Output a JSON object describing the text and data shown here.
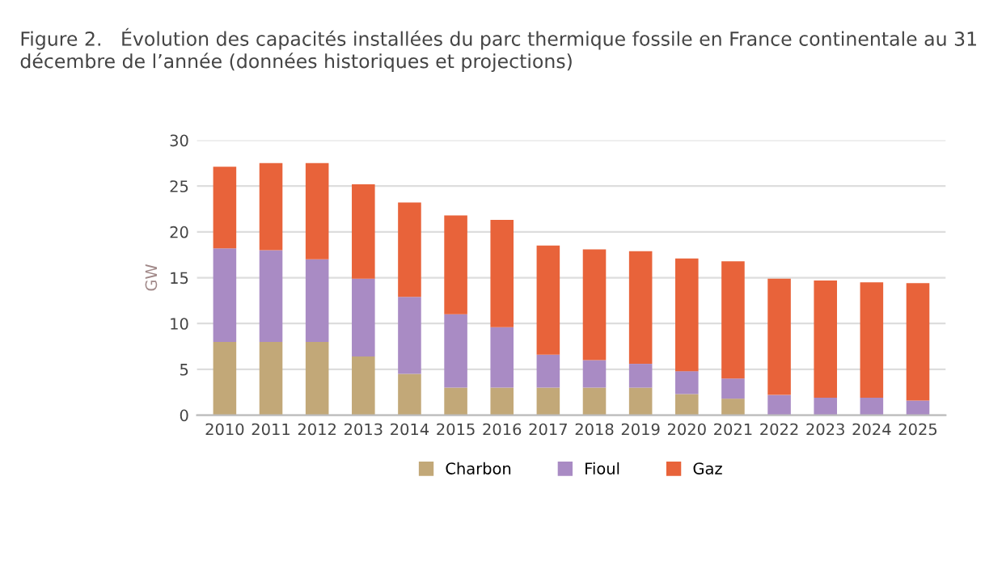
{
  "chart_data": {
    "type": "bar",
    "title": "Figure 2.   Évolution des capacités installées du parc thermique fossile en France continentale au 31 décembre de l’année (données historiques et projections)",
    "ylabel": "GW",
    "categories": [
      "2010",
      "2011",
      "2012",
      "2013",
      "2014",
      "2015",
      "2016",
      "2017",
      "2018",
      "2019",
      "2020",
      "2021",
      "2022",
      "2023",
      "2024",
      "2025"
    ],
    "stacked": true,
    "series": [
      {
        "name": "Charbon",
        "color": "#c2a878",
        "values": [
          8.0,
          8.0,
          8.0,
          6.4,
          4.5,
          3.0,
          3.0,
          3.0,
          3.0,
          3.0,
          2.3,
          1.8,
          0,
          0,
          0,
          0
        ]
      },
      {
        "name": "Fioul",
        "color": "#a98bc4",
        "values": [
          10.2,
          10.0,
          9.0,
          8.5,
          8.4,
          8.0,
          6.6,
          3.6,
          3.0,
          2.6,
          2.5,
          2.2,
          2.2,
          1.9,
          1.9,
          1.6
        ]
      },
      {
        "name": "Gaz",
        "color": "#e8633a",
        "values": [
          8.9,
          9.5,
          10.5,
          10.3,
          10.3,
          10.8,
          11.7,
          11.9,
          12.1,
          12.3,
          12.3,
          12.8,
          12.7,
          12.8,
          12.6,
          12.8
        ]
      }
    ],
    "ylim": [
      0,
      30
    ],
    "yticks": [
      0,
      5,
      10,
      15,
      20,
      25,
      30
    ],
    "grid": "y",
    "legend": "bottom"
  }
}
